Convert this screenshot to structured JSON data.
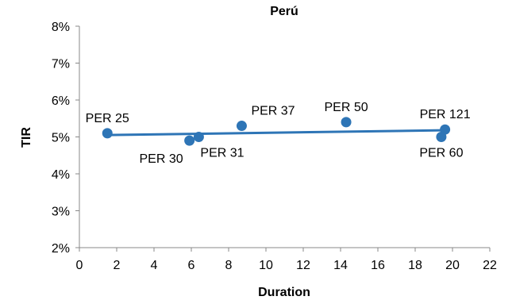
{
  "chart_data": {
    "type": "scatter",
    "title": "Perú",
    "xlabel": "Duration",
    "ylabel": "TIR",
    "xlim": [
      0,
      22
    ],
    "ylim": [
      0.02,
      0.08
    ],
    "x_ticks": [
      "0",
      "2",
      "4",
      "6",
      "8",
      "10",
      "12",
      "14",
      "16",
      "18",
      "20",
      "22"
    ],
    "y_ticks": [
      "2%",
      "3%",
      "4%",
      "5%",
      "6%",
      "7%",
      "8%"
    ],
    "grid": false,
    "legend": "none",
    "marker_color": "#2E75B6",
    "trendline": {
      "color": "#2E75B6",
      "x": [
        1.5,
        19.5
      ],
      "y": [
        0.0505,
        0.0518
      ]
    },
    "points": [
      {
        "label": "PER 25",
        "x": 1.5,
        "y": 0.051,
        "label_pos": "above"
      },
      {
        "label": "PER 30",
        "x": 5.9,
        "y": 0.049,
        "label_pos": "below-left"
      },
      {
        "label": "PER 31",
        "x": 6.4,
        "y": 0.05,
        "label_pos": "below-right"
      },
      {
        "label": "PER 37",
        "x": 8.7,
        "y": 0.053,
        "label_pos": "above-right"
      },
      {
        "label": "PER 50",
        "x": 14.3,
        "y": 0.054,
        "label_pos": "above"
      },
      {
        "label": "PER 121",
        "x": 19.6,
        "y": 0.052,
        "label_pos": "above"
      },
      {
        "label": "PER 60",
        "x": 19.4,
        "y": 0.05,
        "label_pos": "below"
      }
    ]
  }
}
